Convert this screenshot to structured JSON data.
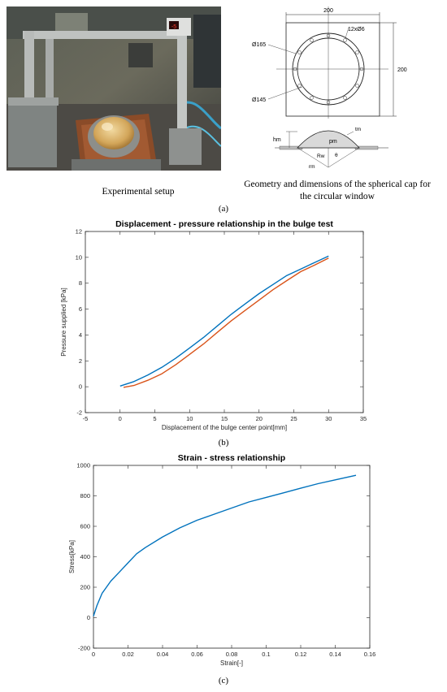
{
  "panel_a": {
    "photo_caption": "Experimental setup",
    "photo_display_text": "-5",
    "drawing_caption_line1": "Geometry and dimensions of the spherical cap for",
    "drawing_caption_line2": "the circular window",
    "label": "(a)",
    "dims": {
      "width_top": "200",
      "height_right": "200",
      "outer_circle": "Ø165",
      "inner_circle": "Ø145",
      "holes": "12xØ6",
      "t_m": "tm",
      "h_m": "hm",
      "p_m": "pm",
      "R_w": "Rw",
      "r_m": "rm",
      "theta": "θ"
    }
  },
  "panel_b_label": "(b)",
  "panel_c_label": "(c)",
  "colors": {
    "blue": "#0072BD",
    "orange": "#D95319",
    "axis": "#262626"
  },
  "chart_data": [
    {
      "type": "line",
      "title": "Displacement - pressure relationship in the bulge test",
      "xlabel": "Displacement of the bulge center point[mm]",
      "ylabel": "Pressure supplied [kPa]",
      "xlim": [
        -5,
        35
      ],
      "ylim": [
        -2,
        12
      ],
      "xticks": [
        "-5",
        "0",
        "5",
        "10",
        "15",
        "20",
        "25",
        "30",
        "35"
      ],
      "yticks": [
        "-2",
        "0",
        "2",
        "4",
        "6",
        "8",
        "10",
        "12"
      ],
      "grid": false,
      "legend": "none",
      "series": [
        {
          "color": "#0072BD",
          "x": [
            0,
            2,
            4,
            6,
            8,
            10,
            12,
            14,
            16,
            18,
            20,
            22,
            24,
            26,
            28,
            30
          ],
          "y": [
            0.05,
            0.4,
            0.9,
            1.5,
            2.2,
            3.0,
            3.8,
            4.7,
            5.6,
            6.4,
            7.2,
            7.9,
            8.6,
            9.1,
            9.6,
            10.1
          ]
        },
        {
          "color": "#D95319",
          "x": [
            0.5,
            2,
            4,
            6,
            8,
            10,
            12,
            14,
            16,
            18,
            20,
            22,
            24,
            26,
            28,
            30
          ],
          "y": [
            -0.05,
            0.1,
            0.5,
            1.0,
            1.7,
            2.5,
            3.3,
            4.2,
            5.1,
            5.9,
            6.7,
            7.5,
            8.2,
            8.9,
            9.4,
            9.95
          ]
        }
      ]
    },
    {
      "type": "line",
      "title": "Strain - stress relationship",
      "xlabel": "Strain[-]",
      "ylabel": "Stress[kPa]",
      "xlim": [
        0,
        0.16
      ],
      "ylim": [
        -200,
        1000
      ],
      "xticks": [
        "0",
        "0.02",
        "0.04",
        "0.06",
        "0.08",
        "0.1",
        "0.12",
        "0.14",
        "0.16"
      ],
      "yticks": [
        "-200",
        "0",
        "200",
        "400",
        "600",
        "800",
        "1000"
      ],
      "grid": false,
      "legend": "none",
      "series": [
        {
          "color": "#0072BD",
          "x": [
            0,
            0.002,
            0.005,
            0.01,
            0.015,
            0.02,
            0.025,
            0.03,
            0.04,
            0.05,
            0.06,
            0.07,
            0.08,
            0.09,
            0.1,
            0.11,
            0.12,
            0.13,
            0.14,
            0.152
          ],
          "y": [
            10,
            80,
            160,
            240,
            300,
            360,
            420,
            460,
            530,
            590,
            640,
            680,
            720,
            760,
            790,
            820,
            850,
            880,
            905,
            935
          ]
        }
      ]
    }
  ]
}
